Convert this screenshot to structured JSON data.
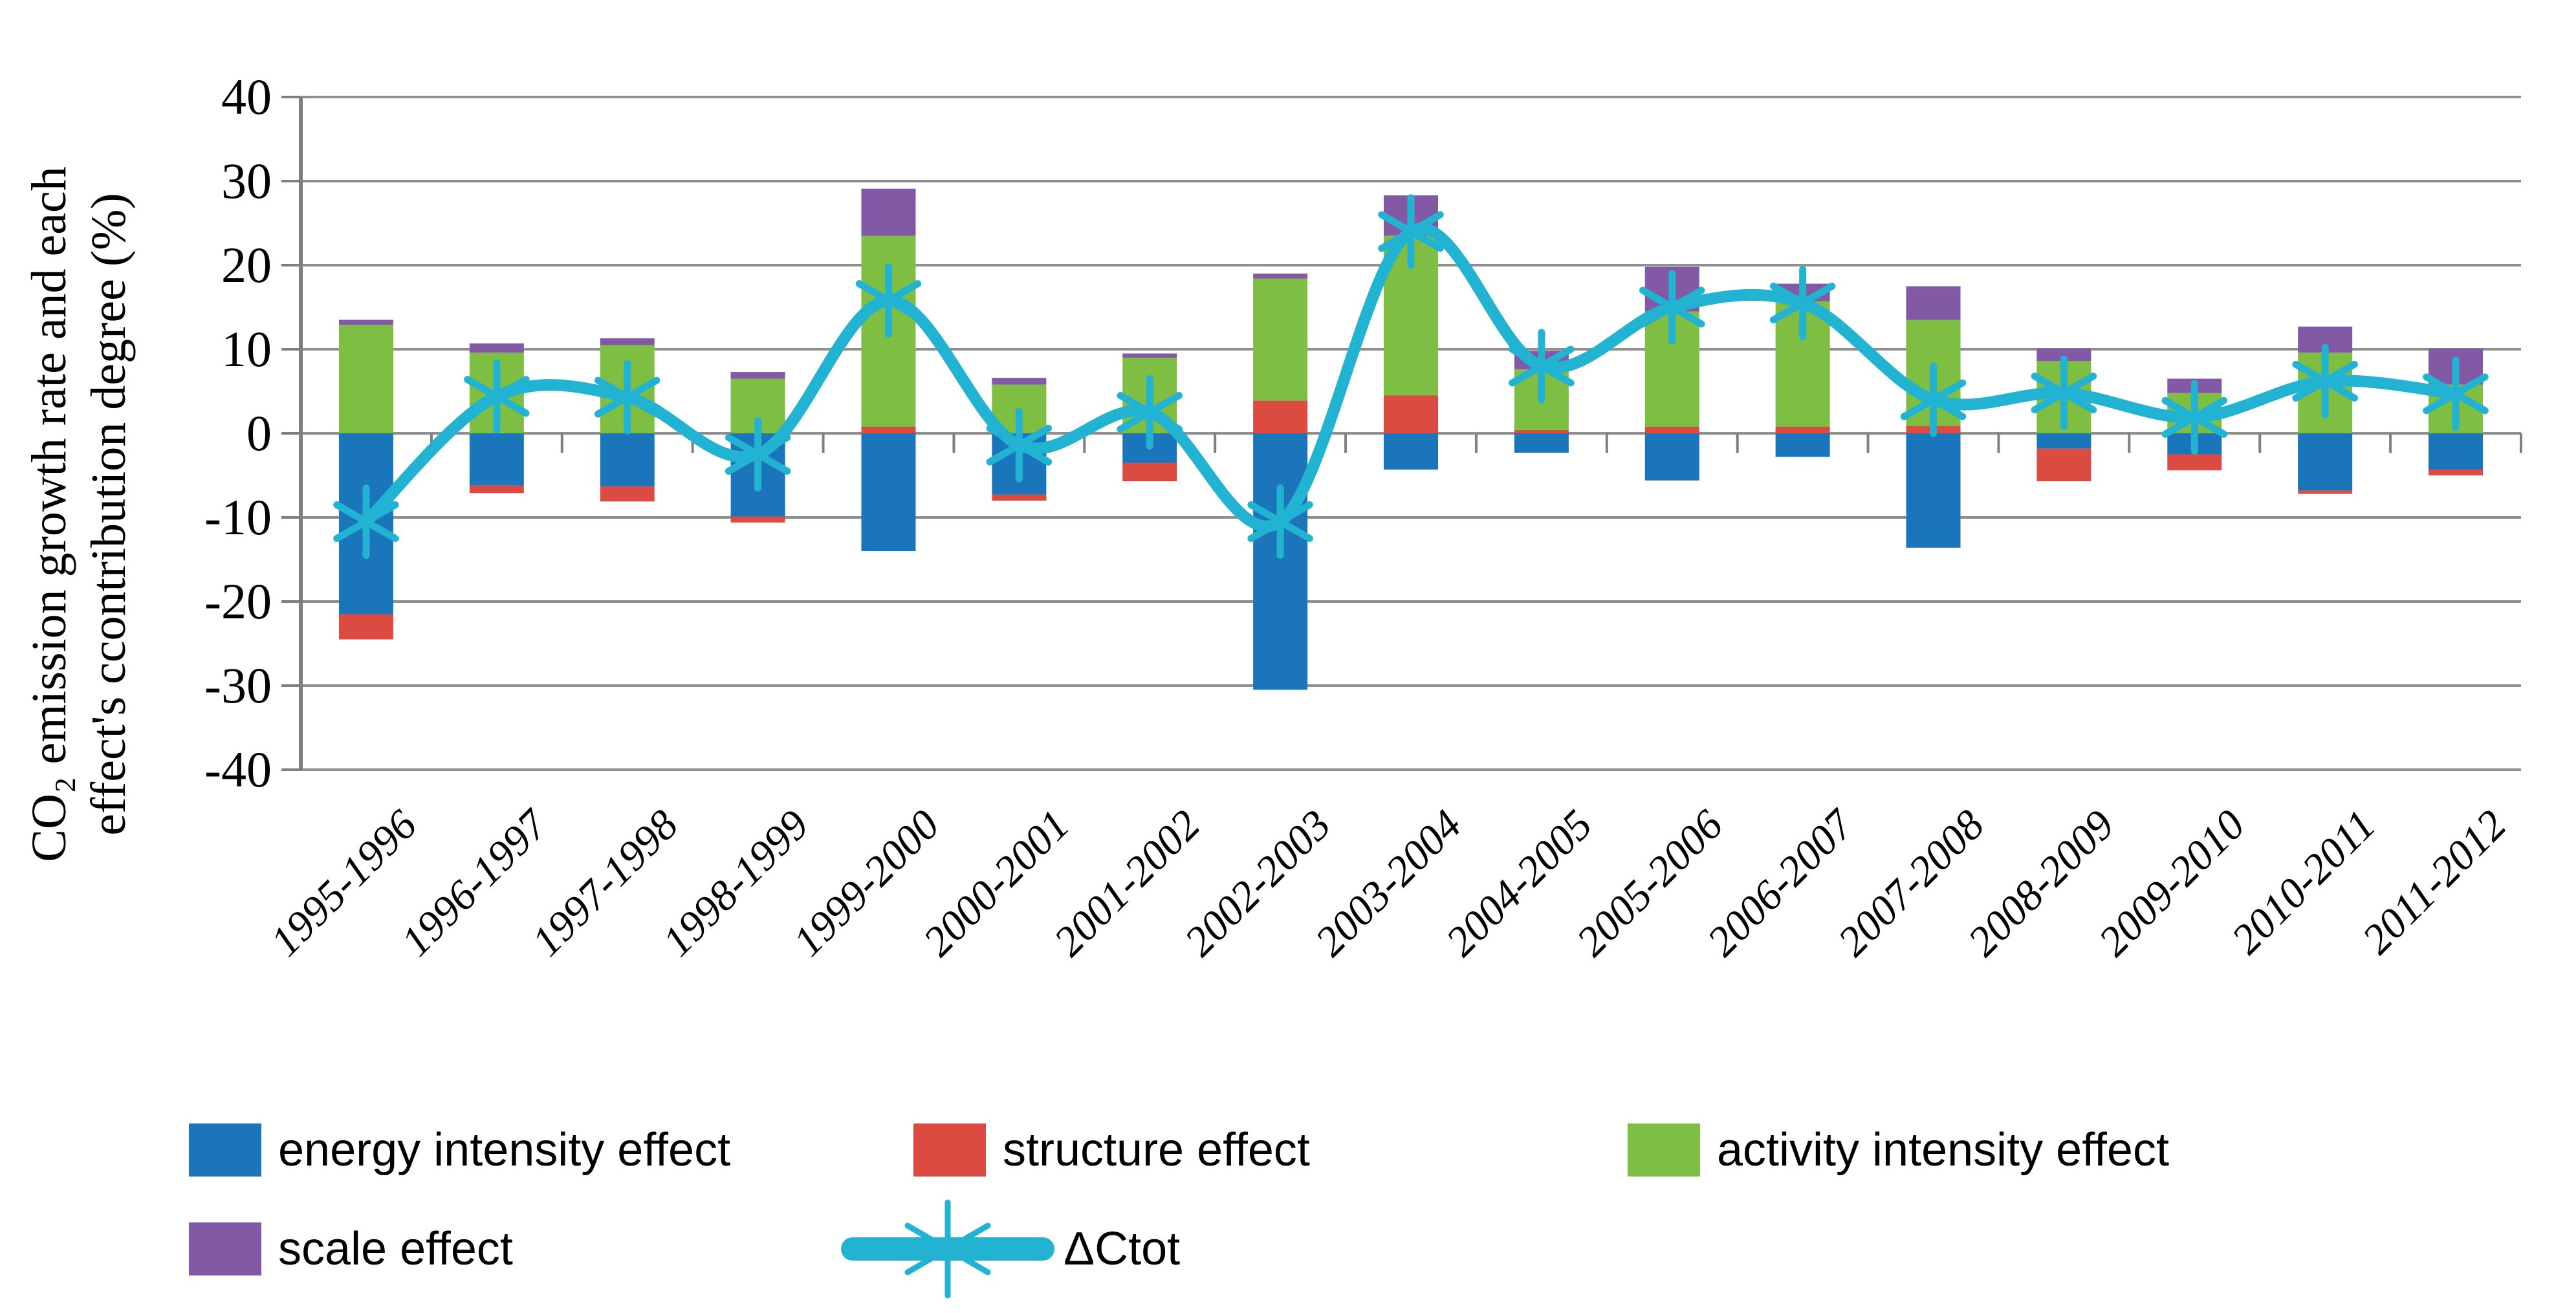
{
  "figure": {
    "ylabel_line1": "CO₂ emission growth rate and each",
    "ylabel_line2": "effect's ccontribution degree (%)"
  },
  "colors": {
    "background": "#FFFFFF",
    "gridline": "#8F8F8F",
    "axis": "#7F7F7F",
    "text": "#000000"
  },
  "chart_data": {
    "type": "bar",
    "subtype": "stacked-bars-with-line-overlay",
    "title": "",
    "xlabel": "",
    "ylabel": "CO₂ emission growth rate and each effect's ccontribution degree (%)",
    "ylim": [
      -40,
      40
    ],
    "ytick_step": 10,
    "yticks": [
      40,
      30,
      20,
      10,
      0,
      -10,
      -20,
      -30,
      -40
    ],
    "grid": true,
    "legend_position": "bottom",
    "categories": [
      "1995-1996",
      "1996-1997",
      "1997-1998",
      "1998-1999",
      "1999-2000",
      "2000-2001",
      "2001-2002",
      "2002-2003",
      "2003-2004",
      "2004-2005",
      "2005-2006",
      "2006-2007",
      "2007-2008",
      "2008-2009",
      "2009-2010",
      "2010-2011",
      "2011-2012"
    ],
    "series": [
      {
        "name": "energy intensity effect",
        "type": "bar",
        "color": "#1B75BB",
        "values": [
          -21.5,
          -6.2,
          -6.3,
          -9.9,
          -14.0,
          -7.3,
          -3.5,
          -30.5,
          -4.3,
          -2.3,
          -5.6,
          -2.8,
          -13.6,
          -1.8,
          -2.5,
          -6.8,
          -4.3
        ]
      },
      {
        "name": "structure effect",
        "type": "bar",
        "color": "#DC4B42",
        "values": [
          -3.0,
          -0.9,
          -1.8,
          -0.7,
          0.8,
          -0.7,
          -2.2,
          3.9,
          4.5,
          0.4,
          0.8,
          0.8,
          0.9,
          -3.9,
          -1.9,
          -0.4,
          -0.7
        ]
      },
      {
        "name": "activity intensity effect",
        "type": "bar",
        "color": "#7EBE42",
        "values": [
          12.9,
          9.6,
          10.5,
          6.5,
          22.7,
          5.8,
          9.0,
          14.5,
          19.0,
          7.2,
          13.7,
          14.9,
          12.6,
          8.6,
          4.8,
          9.6,
          5.8
        ]
      },
      {
        "name": "scale effect",
        "type": "bar",
        "color": "#8159A5",
        "values": [
          0.6,
          1.1,
          0.8,
          0.8,
          5.6,
          0.8,
          0.5,
          0.6,
          4.8,
          2.2,
          5.3,
          2.1,
          4.0,
          1.5,
          1.7,
          3.1,
          4.3
        ]
      },
      {
        "name": "ΔCtot",
        "type": "line",
        "color": "#22B2D2",
        "values": [
          -10.5,
          4.4,
          4.3,
          -2.5,
          15.8,
          -1.4,
          2.5,
          -10.5,
          24.0,
          8.0,
          15.0,
          15.5,
          4.0,
          4.8,
          1.9,
          6.2,
          4.7
        ]
      }
    ]
  }
}
